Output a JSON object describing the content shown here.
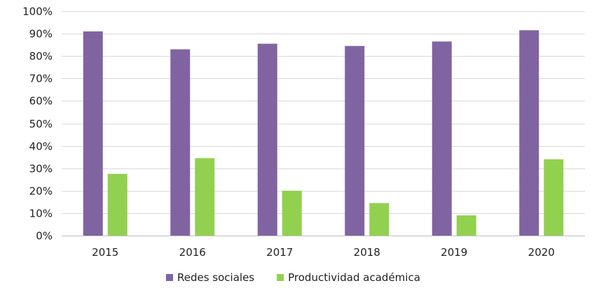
{
  "chart_data": {
    "type": "bar",
    "title": "",
    "xlabel": "",
    "ylabel": "",
    "categories": [
      "2015",
      "2016",
      "2017",
      "2018",
      "2019",
      "2020"
    ],
    "series": [
      {
        "name": "Redes sociales",
        "color": "#8064a2",
        "values": [
          91,
          83,
          85.5,
          84.5,
          86.5,
          91.5
        ]
      },
      {
        "name": "Productividad académica",
        "color": "#92d050",
        "values": [
          27.5,
          34.5,
          20,
          14.5,
          9,
          34
        ]
      }
    ],
    "ylim": [
      0,
      100
    ],
    "yticks": [
      "0%",
      "10%",
      "20%",
      "30%",
      "40%",
      "50%",
      "60%",
      "70%",
      "80%",
      "90%",
      "100%"
    ],
    "grid": true,
    "legend": "bottom-center"
  }
}
